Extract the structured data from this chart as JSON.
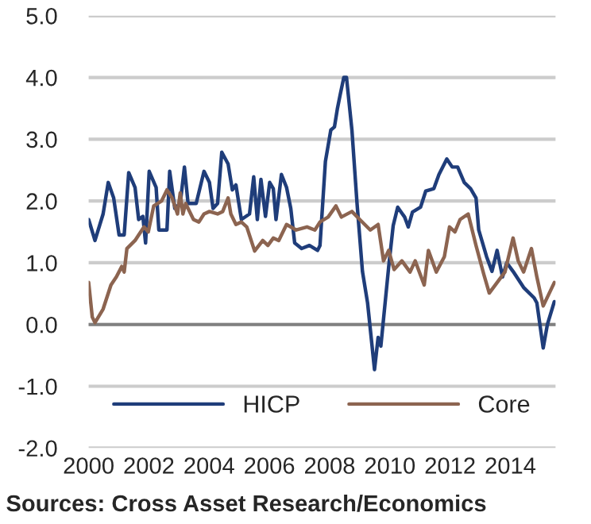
{
  "chart_data": {
    "type": "line",
    "x": [
      2000.0,
      2000.21,
      2000.48,
      2000.65,
      2000.83,
      2001.01,
      2001.18,
      2001.33,
      2001.54,
      2001.66,
      2001.8,
      2001.89,
      2002.01,
      2002.24,
      2002.33,
      2002.6,
      2002.69,
      2002.86,
      2003.04,
      2003.18,
      2003.3,
      2003.57,
      2003.83,
      2004.01,
      2004.13,
      2004.28,
      2004.42,
      2004.63,
      2004.77,
      2004.89,
      2005.07,
      2005.34,
      2005.48,
      2005.6,
      2005.72,
      2005.87,
      2006.01,
      2006.13,
      2006.22,
      2006.4,
      2006.57,
      2006.71,
      2006.84,
      2007.07,
      2007.33,
      2007.6,
      2007.68,
      2007.86,
      2008.04,
      2008.16,
      2008.26,
      2008.35,
      2008.47,
      2008.56,
      2008.74,
      2008.91,
      2009.09,
      2009.26,
      2009.49,
      2009.61,
      2009.7,
      2009.96,
      2010.11,
      2010.26,
      2010.49,
      2010.61,
      2010.75,
      2011.02,
      2011.19,
      2011.46,
      2011.63,
      2011.89,
      2012.07,
      2012.25,
      2012.47,
      2012.68,
      2012.86,
      2012.95,
      2013.21,
      2013.39,
      2013.56,
      2013.74,
      2013.88,
      2014.09,
      2014.44,
      2014.79,
      2014.88,
      2015.09,
      2015.23,
      2015.46
    ],
    "series": [
      {
        "name": "HICP",
        "color": "#1f3d7a",
        "values": [
          1.7,
          1.36,
          1.79,
          2.3,
          2.05,
          1.45,
          1.45,
          2.46,
          2.22,
          1.7,
          1.75,
          1.32,
          2.48,
          2.22,
          1.53,
          1.53,
          2.48,
          1.88,
          1.96,
          2.55,
          1.96,
          1.96,
          2.48,
          2.3,
          1.88,
          1.96,
          2.79,
          2.6,
          2.18,
          2.26,
          1.7,
          1.79,
          2.39,
          1.7,
          2.35,
          1.75,
          2.3,
          2.2,
          1.7,
          2.43,
          2.22,
          1.88,
          1.32,
          1.23,
          1.28,
          1.2,
          1.28,
          2.64,
          3.15,
          3.2,
          3.5,
          3.72,
          4.0,
          4.0,
          3.15,
          1.96,
          0.86,
          0.35,
          -0.73,
          -0.21,
          -0.35,
          0.93,
          1.6,
          1.9,
          1.74,
          1.58,
          1.82,
          1.9,
          2.16,
          2.2,
          2.43,
          2.68,
          2.55,
          2.55,
          2.3,
          2.2,
          2.05,
          1.53,
          1.1,
          0.86,
          1.2,
          0.77,
          1.0,
          0.86,
          0.6,
          0.43,
          0.35,
          -0.38,
          0.0,
          0.37
        ]
      },
      {
        "name": "Core",
        "color": "#8c6450",
        "x": [
          2000.0,
          2000.12,
          2000.21,
          2000.48,
          2000.74,
          2000.92,
          2001.1,
          2001.18,
          2001.27,
          2001.54,
          2001.66,
          2001.84,
          2001.98,
          2002.16,
          2002.42,
          2002.6,
          2002.77,
          2002.95,
          2003.04,
          2003.13,
          2003.22,
          2003.48,
          2003.66,
          2003.83,
          2004.01,
          2004.28,
          2004.45,
          2004.63,
          2004.72,
          2004.89,
          2005.07,
          2005.25,
          2005.51,
          2005.78,
          2005.95,
          2006.13,
          2006.31,
          2006.57,
          2006.89,
          2007.25,
          2007.51,
          2007.68,
          2007.95,
          2008.21,
          2008.39,
          2008.74,
          2009.0,
          2009.35,
          2009.61,
          2009.79,
          2009.96,
          2010.14,
          2010.4,
          2010.67,
          2010.84,
          2011.14,
          2011.28,
          2011.54,
          2011.81,
          2011.98,
          2012.16,
          2012.33,
          2012.6,
          2012.86,
          2013.12,
          2013.3,
          2013.56,
          2013.82,
          2014.09,
          2014.26,
          2014.44,
          2014.7,
          2014.88,
          2015.09,
          2015.46
        ],
        "values": [
          0.68,
          0.12,
          0.03,
          0.25,
          0.64,
          0.77,
          0.94,
          0.85,
          1.23,
          1.36,
          1.45,
          1.58,
          1.5,
          1.92,
          2.0,
          2.18,
          2.05,
          1.79,
          2.13,
          1.79,
          1.96,
          1.7,
          1.66,
          1.79,
          1.83,
          1.79,
          1.83,
          2.05,
          1.79,
          1.62,
          1.66,
          1.58,
          1.19,
          1.36,
          1.28,
          1.4,
          1.36,
          1.62,
          1.53,
          1.58,
          1.53,
          1.66,
          1.74,
          1.92,
          1.74,
          1.83,
          1.7,
          1.53,
          1.62,
          1.03,
          1.2,
          0.89,
          1.03,
          0.85,
          1.03,
          0.64,
          1.2,
          0.85,
          1.1,
          1.58,
          1.5,
          1.7,
          1.79,
          1.28,
          0.81,
          0.51,
          0.68,
          0.85,
          1.4,
          1.03,
          0.85,
          1.23,
          0.77,
          0.3,
          0.68
        ]
      }
    ],
    "xlim": [
      2000,
      2015.5
    ],
    "xticks": [
      2000,
      2002,
      2004,
      2006,
      2008,
      2010,
      2012,
      2014
    ],
    "ylim": [
      -2,
      5
    ],
    "yticks": [
      {
        "value": -2,
        "label": "-2.0"
      },
      {
        "value": -1,
        "label": "-1.0"
      },
      {
        "value": 0,
        "label": "0.0"
      },
      {
        "value": 1,
        "label": "1.0"
      },
      {
        "value": 2,
        "label": "2.0"
      },
      {
        "value": 3,
        "label": "3.0"
      },
      {
        "value": 4,
        "label": "4.0"
      },
      {
        "value": 5,
        "label": "5.0"
      }
    ],
    "grid": "y",
    "ref_lines": [
      {
        "axis": "y",
        "value": 0,
        "color": "#808080"
      }
    ],
    "legend": "bottom",
    "annotations": [
      "Sources: Cross Asset Research/Economics"
    ]
  }
}
